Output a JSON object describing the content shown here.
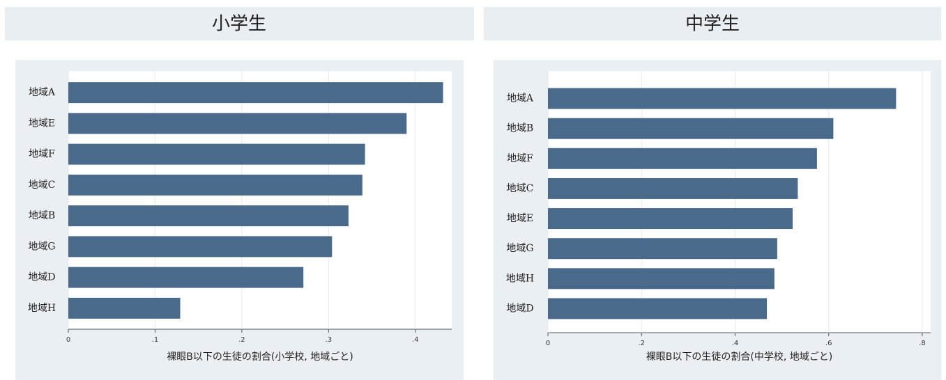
{
  "chart_data": [
    {
      "type": "bar",
      "orientation": "horizontal",
      "title": "小学生",
      "x_label": "裸眼B以下の生徒の割合(小学校, 地域ごと)",
      "categories": [
        "地域A",
        "地域E",
        "地域F",
        "地域C",
        "地域B",
        "地域G",
        "地域D",
        "地域H"
      ],
      "values": [
        0.432,
        0.39,
        0.342,
        0.339,
        0.323,
        0.304,
        0.271,
        0.129
      ],
      "color": "#4a6a8c",
      "xlim": [
        0,
        0.442
      ],
      "xticks": [
        0,
        {
          "value": 0.1,
          "label": ".1"
        },
        {
          "value": 0.2,
          "label": ".2"
        },
        {
          "value": 0.3,
          "label": ".3"
        },
        {
          "value": 0.4,
          "label": ".4"
        }
      ],
      "grid": true
    },
    {
      "type": "bar",
      "orientation": "horizontal",
      "title": "中学生",
      "x_label": "裸眼B以下の生徒の割合(中学校, 地域ごと)",
      "categories": [
        "地域A",
        "地域B",
        "地域F",
        "地域C",
        "地域E",
        "地域G",
        "地域H",
        "地域D"
      ],
      "values": [
        0.744,
        0.61,
        0.575,
        0.534,
        0.523,
        0.49,
        0.484,
        0.468
      ],
      "color": "#4a6a8c",
      "xlim": [
        0,
        0.818
      ],
      "xticks": [
        0,
        {
          "value": 0.2,
          "label": ".2"
        },
        {
          "value": 0.4,
          "label": ".4"
        },
        {
          "value": 0.6,
          "label": ".6"
        },
        {
          "value": 0.8,
          "label": ".8"
        }
      ],
      "grid": true
    }
  ]
}
